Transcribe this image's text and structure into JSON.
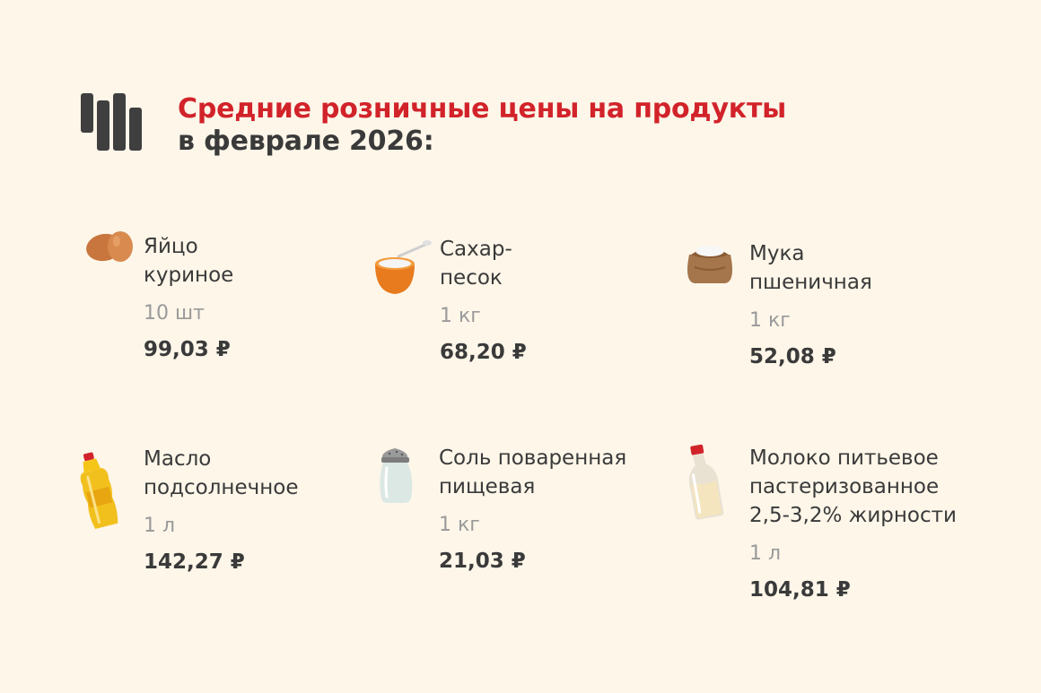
{
  "header": {
    "title_line1": "Средние розничные цены на продукты",
    "title_line2": "в феврале 2026:",
    "logo_icon": "bars-logo-icon"
  },
  "colors": {
    "background": "#fdf6e9",
    "accent": "#d2232a",
    "text": "#3a3a3a",
    "muted": "#9a9a9a"
  },
  "items": [
    {
      "name": "Яйцо\nкуриное",
      "unit": "10 шт",
      "price": "99,03 ₽",
      "icon": "eggs-icon"
    },
    {
      "name": "Сахар-\nпесок",
      "unit": "1 кг",
      "price": "68,20 ₽",
      "icon": "sugar-bowl-icon"
    },
    {
      "name": "Мука\nпшеничная",
      "unit": "1 кг",
      "price": "52,08 ₽",
      "icon": "flour-sack-icon"
    },
    {
      "name": "Масло\nподсолнечное",
      "unit": "1 л",
      "price": "142,27 ₽",
      "icon": "oil-bottle-icon"
    },
    {
      "name": "Соль поваренная\nпищевая",
      "unit": "1 кг",
      "price": "21,03 ₽",
      "icon": "salt-shaker-icon"
    },
    {
      "name": "Молоко питьевое\nпастеризованное\n2,5-3,2% жирности",
      "unit": "1 л",
      "price": "104,81 ₽",
      "icon": "milk-bottle-icon"
    }
  ]
}
